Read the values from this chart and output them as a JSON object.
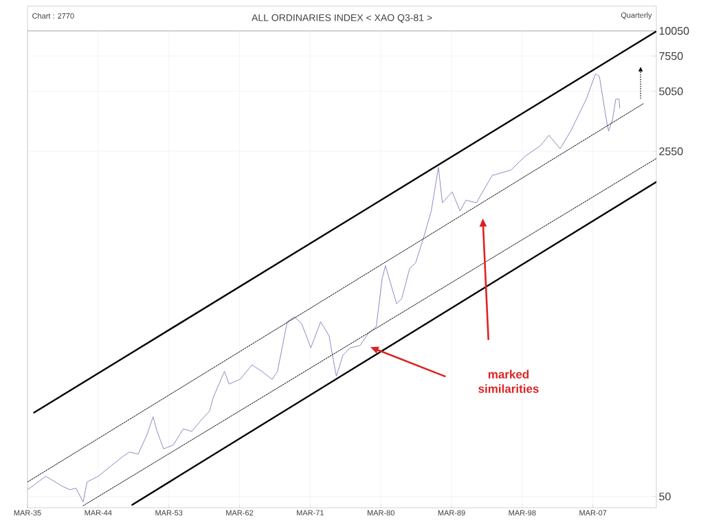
{
  "chart_data": {
    "type": "line",
    "title": "ALL ORDINARIES INDEX < XAO Q3-81 >",
    "subtitle": "Quarterly",
    "annotations": [
      "Chart : 2770",
      "marked similarities"
    ],
    "x": [
      "1935-03",
      "1937-07",
      "1939-09",
      "1940-08",
      "1941-05",
      "1942-04",
      "1942-10",
      "1944-03",
      "1945-11",
      "1947-05",
      "1948-03",
      "1949-04",
      "1950-05",
      "1951-03",
      "1951-09",
      "1952-07",
      "1953-10",
      "1955-01",
      "1956-02",
      "1957-07",
      "1958-05",
      "1958-11",
      "1960-04",
      "1960-11",
      "1962-04",
      "1963-10",
      "1965-01",
      "1966-05",
      "1967-01",
      "1968-04",
      "1969-03",
      "1970-02",
      "1971-04",
      "1972-07",
      "1973-08",
      "1973-11",
      "1974-07",
      "1975-05",
      "1976-04",
      "1977-07",
      "1978-08",
      "1979-08",
      "1980-05",
      "1980-10",
      "1982-03",
      "1982-11",
      "1983-11",
      "1984-08",
      "1985-08",
      "1986-08",
      "1987-07",
      "1988-01",
      "1989-04",
      "1990-04",
      "1991-01",
      "1992-05",
      "1994-05",
      "1996-10",
      "1998-07",
      "2000-07",
      "2001-08",
      "2003-01",
      "2004-05",
      "2006-05",
      "2007-07",
      "2008-01",
      "2008-11",
      "2009-03",
      "2009-09",
      "2010-02",
      "2010-07",
      "2010-08"
    ],
    "series": [
      {
        "color": "#8a8ac4",
        "line_style": "solid",
        "values": [
          54,
          63,
          56,
          54,
          55,
          47,
          59,
          63,
          71,
          79,
          83,
          81,
          100,
          124,
          105,
          86,
          90,
          108,
          105,
          122,
          132,
          155,
          208,
          180,
          190,
          224,
          208,
          190,
          208,
          366,
          387,
          358,
          272,
          366,
          311,
          272,
          197,
          250,
          272,
          279,
          321,
          347,
          598,
          693,
          449,
          477,
          672,
          714,
          946,
          1291,
          2123,
          1419,
          1607,
          1291,
          1462,
          1419,
          1936,
          2061,
          2404,
          2723,
          3061,
          2624,
          3207,
          4624,
          6166,
          5984,
          3750,
          3207,
          3664,
          4624,
          4624,
          4178
        ]
      },
      {
        "type": "line",
        "color": "#000000",
        "line_style": "solid",
        "x": [
          "1936-01",
          "2015-04"
        ],
        "values": [
          130,
          10000
        ]
      },
      {
        "type": "line",
        "color": "#000000",
        "line_style": "dashed",
        "x": [
          "1935-03",
          "2013-08"
        ],
        "values": [
          59,
          4385
        ]
      },
      {
        "type": "line",
        "color": "#000000",
        "line_style": "dashed",
        "x": [
          "1942-04",
          "2015-04"
        ],
        "values": [
          45,
          2350
        ]
      },
      {
        "type": "line",
        "color": "#000000",
        "line_style": "solid",
        "x": [
          "1948-07",
          "2015-04"
        ],
        "values": [
          45.5,
          1800
        ]
      }
    ],
    "xlim": [
      "1935-03",
      "2015-04"
    ],
    "xticks": [
      {
        "value": "1935-03",
        "label": "MAR-35"
      },
      {
        "value": "1944-03",
        "label": "MAR-44"
      },
      {
        "value": "1953-03",
        "label": "MAR-53"
      },
      {
        "value": "1962-03",
        "label": "MAR-62"
      },
      {
        "value": "1971-03",
        "label": "MAR-71"
      },
      {
        "value": "1980-03",
        "label": "MAR-80"
      },
      {
        "value": "1989-03",
        "label": "MAR-89"
      },
      {
        "value": "1998-03",
        "label": "MAR-98"
      },
      {
        "value": "2007-03",
        "label": "MAR-07"
      }
    ],
    "ylim": [
      44,
      10050
    ],
    "yticks": [
      50,
      2550,
      5050,
      7550,
      10050
    ],
    "log": "y",
    "grid": true,
    "marker": "none"
  }
}
